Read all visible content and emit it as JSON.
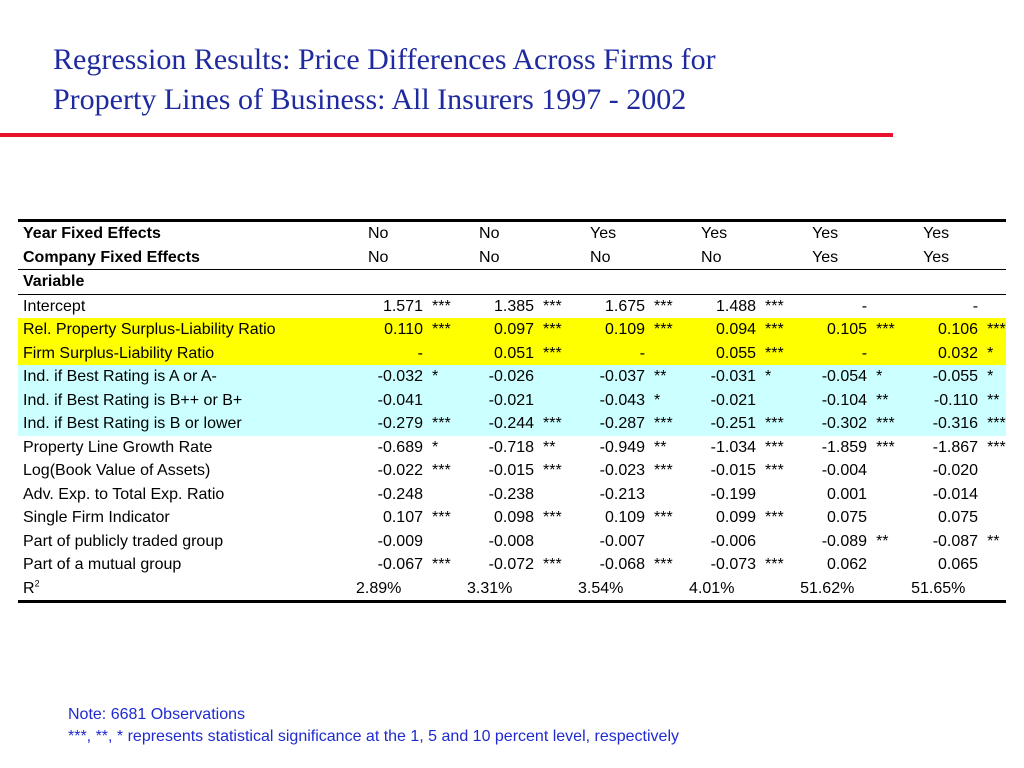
{
  "title": {
    "line1": "Regression Results:  Price Differences Across Firms for",
    "line2": "Property Lines of Business:  All Insurers 1997 - 2002"
  },
  "colors": {
    "title": "#1f2a9e",
    "rule": "#e8122d",
    "highlight_yellow": "#ffff00",
    "highlight_cyan": "#ccffff",
    "note": "#1f2ad0"
  },
  "table": {
    "year_fixed_effects": {
      "label": "Year Fixed Effects",
      "values": [
        "No",
        "No",
        "Yes",
        "Yes",
        "Yes",
        "Yes"
      ]
    },
    "company_fixed_effects": {
      "label": "Company Fixed Effects",
      "values": [
        "No",
        "No",
        "No",
        "No",
        "Yes",
        "Yes"
      ]
    },
    "variable_header": "Variable",
    "rows": [
      {
        "label": "Intercept",
        "highlight": "none",
        "cells": [
          [
            "1.571",
            "***"
          ],
          [
            "1.385",
            "***"
          ],
          [
            "1.675",
            "***"
          ],
          [
            "1.488",
            "***"
          ],
          [
            "-",
            ""
          ],
          [
            "-",
            ""
          ]
        ]
      },
      {
        "label": "Rel. Property Surplus-Liability Ratio",
        "highlight": "yellow",
        "cells": [
          [
            "0.110",
            "***"
          ],
          [
            "0.097",
            "***"
          ],
          [
            "0.109",
            "***"
          ],
          [
            "0.094",
            "***"
          ],
          [
            "0.105",
            "***"
          ],
          [
            "0.106",
            "***"
          ]
        ]
      },
      {
        "label": "Firm Surplus-Liability Ratio",
        "highlight": "yellow",
        "cells": [
          [
            "-",
            ""
          ],
          [
            "0.051",
            "***"
          ],
          [
            "-",
            ""
          ],
          [
            "0.055",
            "***"
          ],
          [
            "-",
            ""
          ],
          [
            "0.032",
            "*"
          ]
        ]
      },
      {
        "label": "Ind. if Best Rating is A or A-",
        "highlight": "cyan",
        "cells": [
          [
            "-0.032",
            "*"
          ],
          [
            "-0.026",
            ""
          ],
          [
            "-0.037",
            "**"
          ],
          [
            "-0.031",
            "*"
          ],
          [
            "-0.054",
            "*"
          ],
          [
            "-0.055",
            "*"
          ]
        ]
      },
      {
        "label": "Ind. if Best Rating is B++ or B+",
        "highlight": "cyan",
        "cells": [
          [
            "-0.041",
            ""
          ],
          [
            "-0.021",
            ""
          ],
          [
            "-0.043",
            "*"
          ],
          [
            "-0.021",
            ""
          ],
          [
            "-0.104",
            "**"
          ],
          [
            "-0.110",
            "**"
          ]
        ]
      },
      {
        "label": "Ind. if Best Rating is B or lower",
        "highlight": "cyan",
        "cells": [
          [
            "-0.279",
            "***"
          ],
          [
            "-0.244",
            "***"
          ],
          [
            "-0.287",
            "***"
          ],
          [
            "-0.251",
            "***"
          ],
          [
            "-0.302",
            "***"
          ],
          [
            "-0.316",
            "***"
          ]
        ]
      },
      {
        "label": "Property Line Growth Rate",
        "highlight": "none",
        "cells": [
          [
            "-0.689",
            "*"
          ],
          [
            "-0.718",
            "**"
          ],
          [
            "-0.949",
            "**"
          ],
          [
            "-1.034",
            "***"
          ],
          [
            "-1.859",
            "***"
          ],
          [
            "-1.867",
            "***"
          ]
        ]
      },
      {
        "label": "Log(Book Value of Assets)",
        "highlight": "none",
        "cells": [
          [
            "-0.022",
            "***"
          ],
          [
            "-0.015",
            "***"
          ],
          [
            "-0.023",
            "***"
          ],
          [
            "-0.015",
            "***"
          ],
          [
            "-0.004",
            ""
          ],
          [
            "-0.020",
            ""
          ]
        ]
      },
      {
        "label": "Adv. Exp. to Total Exp. Ratio",
        "highlight": "none",
        "cells": [
          [
            "-0.248",
            ""
          ],
          [
            "-0.238",
            ""
          ],
          [
            "-0.213",
            ""
          ],
          [
            "-0.199",
            ""
          ],
          [
            "0.001",
            ""
          ],
          [
            "-0.014",
            ""
          ]
        ]
      },
      {
        "label": "Single Firm Indicator",
        "highlight": "none",
        "cells": [
          [
            "0.107",
            "***"
          ],
          [
            "0.098",
            "***"
          ],
          [
            "0.109",
            "***"
          ],
          [
            "0.099",
            "***"
          ],
          [
            "0.075",
            ""
          ],
          [
            "0.075",
            ""
          ]
        ]
      },
      {
        "label": "Part of publicly traded group",
        "highlight": "none",
        "cells": [
          [
            "-0.009",
            ""
          ],
          [
            "-0.008",
            ""
          ],
          [
            "-0.007",
            ""
          ],
          [
            "-0.006",
            ""
          ],
          [
            "-0.089",
            "**"
          ],
          [
            "-0.087",
            "**"
          ]
        ]
      },
      {
        "label": "Part of a mutual group",
        "highlight": "none",
        "cells": [
          [
            "-0.067",
            "***"
          ],
          [
            "-0.072",
            "***"
          ],
          [
            "-0.068",
            "***"
          ],
          [
            "-0.073",
            "***"
          ],
          [
            "0.062",
            ""
          ],
          [
            "0.065",
            ""
          ]
        ]
      }
    ],
    "r2": {
      "label": "R",
      "superscript": "2",
      "values": [
        "2.89%",
        "3.31%",
        "3.54%",
        "4.01%",
        "51.62%",
        "51.65%"
      ]
    }
  },
  "notes": {
    "line1": "Note:  6681 Observations",
    "line2": "***, **, * represents statistical significance at the 1, 5 and 10 percent level, respectively"
  }
}
